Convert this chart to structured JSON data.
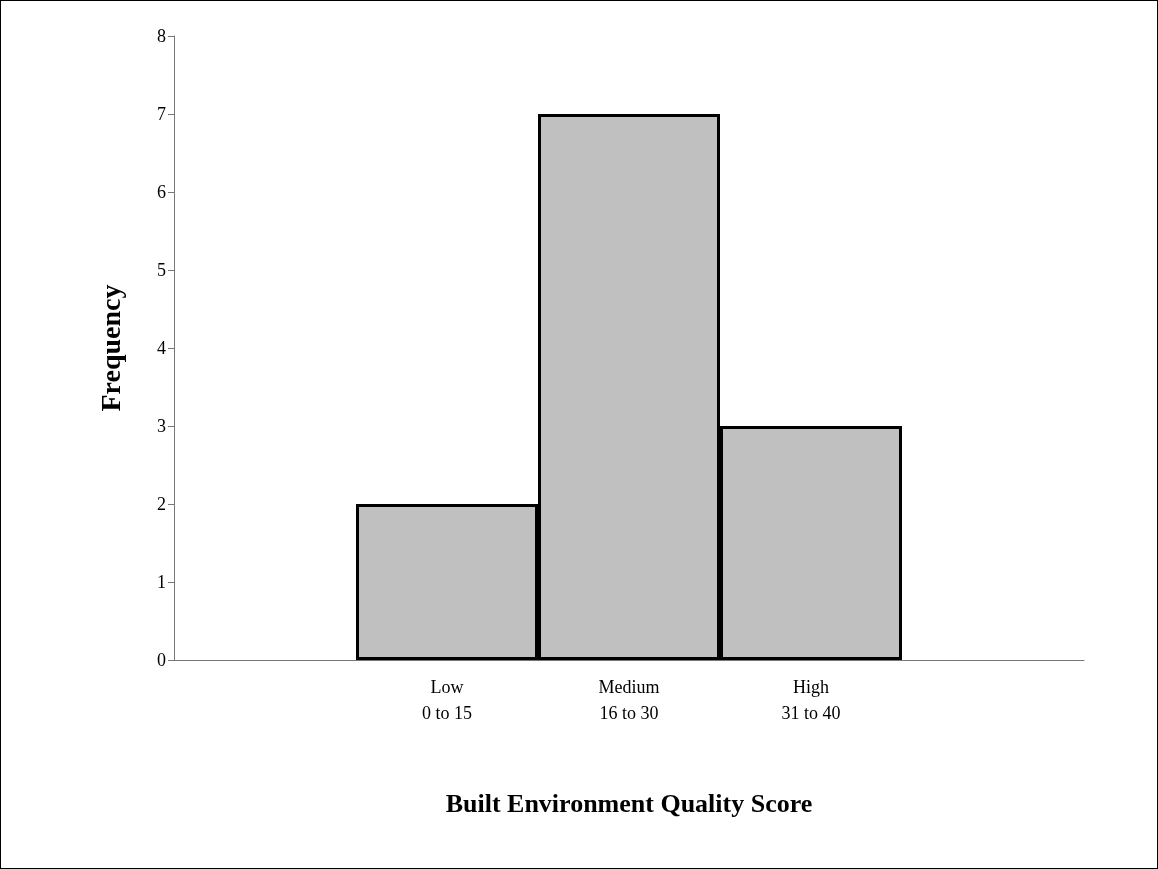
{
  "chart_data": {
    "type": "bar",
    "xlabel": "Built Environment Quality Score",
    "ylabel": "Frequency",
    "categories": [
      null,
      "Low\n0 to 15",
      "Medium\n16 to 30",
      "High\n31 to 40",
      null
    ],
    "values": [
      null,
      2,
      7,
      3,
      null
    ],
    "color": "#c0c0c0",
    "ylim": [
      0,
      8
    ],
    "yticks": [
      0,
      1,
      2,
      3,
      4,
      5,
      6,
      7,
      8
    ]
  }
}
